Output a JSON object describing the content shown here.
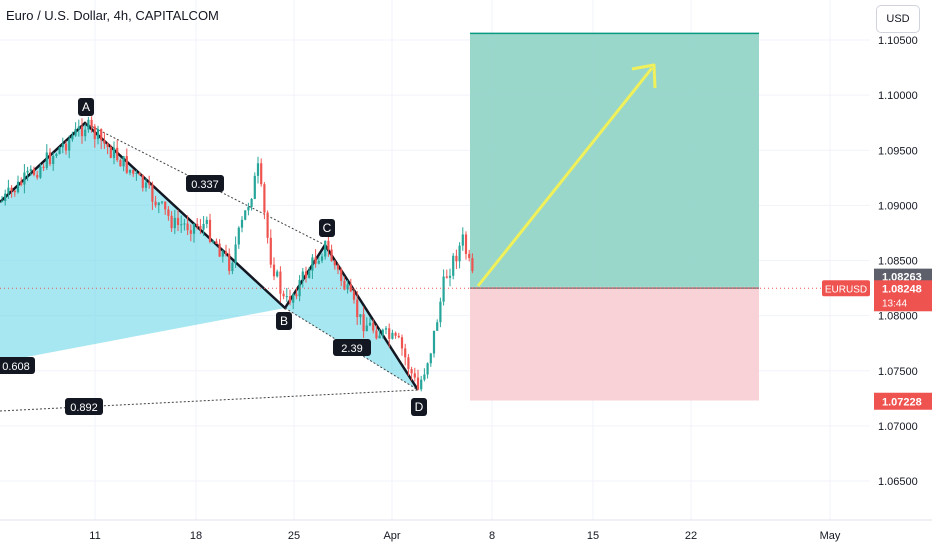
{
  "header": {
    "title": "Euro / U.S. Dollar, 4h, CAPITALCOM",
    "currency_button": "USD"
  },
  "chart_data": {
    "type": "candlestick",
    "symbol": "EURUSD",
    "y_ticks": [
      "1.10500",
      "1.10000",
      "1.09500",
      "1.09000",
      "1.08500",
      "1.08000",
      "1.07500",
      "1.07000",
      "1.06500"
    ],
    "x_ticks": [
      "11",
      "18",
      "25",
      "Apr",
      "8",
      "15",
      "22",
      "May"
    ],
    "price_labels": {
      "target": "1.08263",
      "current": "1.08248",
      "countdown": "13:44",
      "stop": "1.07228"
    },
    "pattern_points": [
      "A",
      "B",
      "C",
      "D"
    ],
    "ratios": [
      "0.337",
      "0.608",
      "2.39",
      "0.892"
    ],
    "colors": {
      "up": "#26a69a",
      "down": "#ef5350",
      "pattern_fill": "#5fd3e6",
      "profit_zone": "#8fd3c5",
      "loss_zone": "#f8d2d6",
      "arrow": "#f0f05a"
    }
  }
}
